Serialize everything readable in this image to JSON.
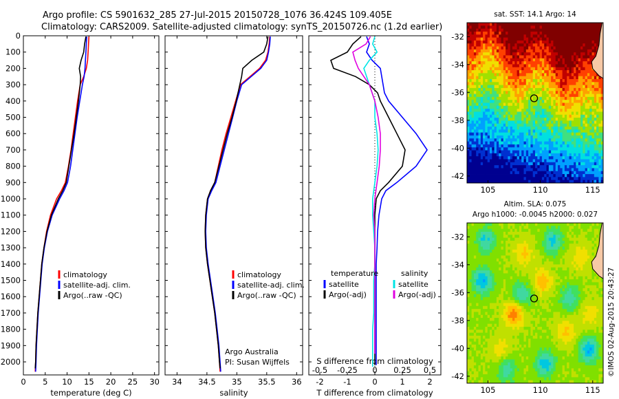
{
  "header": {
    "line1": "Argo profile: CS 5901632_285 27-Jul-2015 20150728_1076 36.424S 109.405E",
    "line2": "Climatology: CARS2009. Satellite-adjusted climatology: synTS_20150726.nc (1.2d earlier)"
  },
  "credits": {
    "text1": "Argo Australia",
    "text2": "PI: Susan Wijffels",
    "imos": "©IMOS 02-Aug-2015 20:43:27"
  },
  "colors": {
    "climatology": "#ff0000",
    "satellite": "#0000ff",
    "argo": "#000000",
    "salinity_satellite": "#00e5e5",
    "salinity_argo": "#e000e0",
    "land": "#f7c9a6"
  },
  "chart_data": [
    {
      "id": "temperature",
      "type": "line",
      "xlabel": "temperature (deg C)",
      "xlim": [
        0,
        31
      ],
      "xticks": [
        0,
        5,
        10,
        15,
        20,
        25,
        30
      ],
      "ylim": [
        0,
        2080
      ],
      "yticks": [
        0,
        100,
        200,
        300,
        400,
        500,
        600,
        700,
        800,
        900,
        1000,
        1100,
        1200,
        1300,
        1400,
        1500,
        1600,
        1700,
        1800,
        1900,
        2000
      ],
      "legend": [
        "climatology",
        "satellite-adj. clim.",
        "Argo(..raw -QC)"
      ],
      "series": [
        {
          "name": "climatology",
          "x": [
            15.0,
            14.9,
            14.8,
            14.7,
            14.4,
            13.8,
            13.0,
            12.4,
            11.9,
            11.4,
            10.9,
            10.3,
            9.6,
            8.7,
            7.6,
            6.2,
            5.3,
            4.7,
            4.2,
            3.9,
            3.6,
            3.3,
            3.1,
            2.9,
            2.8,
            2.7
          ],
          "y": [
            5,
            50,
            100,
            150,
            200,
            250,
            300,
            400,
            500,
            600,
            700,
            800,
            900,
            950,
            1000,
            1100,
            1200,
            1300,
            1400,
            1500,
            1600,
            1700,
            1800,
            1900,
            2000,
            2060
          ]
        },
        {
          "name": "satellite-adj. clim.",
          "x": [
            14.5,
            14.4,
            14.3,
            14.2,
            14.1,
            13.9,
            13.5,
            12.9,
            12.3,
            11.8,
            11.3,
            10.8,
            10.1,
            9.3,
            8.3,
            6.6,
            5.5,
            4.8,
            4.3,
            4.0,
            3.7,
            3.4,
            3.2,
            3.0,
            2.9,
            2.8
          ],
          "y": [
            5,
            50,
            100,
            150,
            200,
            250,
            300,
            400,
            500,
            600,
            700,
            800,
            900,
            950,
            1000,
            1100,
            1200,
            1300,
            1400,
            1500,
            1600,
            1700,
            1800,
            1900,
            2000,
            2060
          ]
        },
        {
          "name": "Argo(..raw -QC)",
          "x": [
            14.3,
            14.0,
            13.8,
            13.2,
            12.8,
            13.1,
            13.0,
            12.6,
            12.1,
            11.6,
            11.0,
            10.4,
            9.8,
            9.0,
            8.0,
            6.4,
            5.4,
            4.7,
            4.2,
            3.9,
            3.6,
            3.3,
            3.1,
            2.9,
            2.8,
            2.7
          ],
          "y": [
            5,
            50,
            100,
            150,
            200,
            250,
            300,
            400,
            500,
            600,
            700,
            800,
            900,
            950,
            1000,
            1100,
            1200,
            1300,
            1400,
            1500,
            1600,
            1700,
            1800,
            1900,
            2000,
            2040
          ]
        }
      ]
    },
    {
      "id": "salinity",
      "type": "line",
      "xlabel": "salinity",
      "xlim": [
        33.8,
        36.1
      ],
      "xticks": [
        34,
        34.5,
        35,
        35.5,
        36
      ],
      "ylim": [
        0,
        2080
      ],
      "legend": [
        "climatology",
        "satellite-adj. clim.",
        "Argo(..raw -QC)"
      ],
      "series": [
        {
          "name": "climatology",
          "x": [
            35.55,
            35.54,
            35.52,
            35.48,
            35.38,
            35.22,
            35.06,
            34.98,
            34.9,
            34.82,
            34.75,
            34.69,
            34.63,
            34.56,
            34.51,
            34.48,
            34.47,
            34.48,
            34.51,
            34.55,
            34.59,
            34.63,
            34.66,
            34.69,
            34.71,
            34.72
          ],
          "y": [
            5,
            50,
            100,
            150,
            200,
            250,
            300,
            400,
            500,
            600,
            700,
            800,
            900,
            950,
            1000,
            1100,
            1200,
            1300,
            1400,
            1500,
            1600,
            1700,
            1800,
            1900,
            2000,
            2060
          ]
        },
        {
          "name": "satellite-adj. clim.",
          "x": [
            35.56,
            35.55,
            35.53,
            35.5,
            35.4,
            35.24,
            35.08,
            35.0,
            34.93,
            34.86,
            34.79,
            34.72,
            34.65,
            34.58,
            34.52,
            34.49,
            34.48,
            34.49,
            34.52,
            34.56,
            34.6,
            34.64,
            34.67,
            34.7,
            34.72,
            34.73
          ],
          "y": [
            5,
            50,
            100,
            150,
            200,
            250,
            300,
            400,
            500,
            600,
            700,
            800,
            900,
            950,
            1000,
            1100,
            1200,
            1300,
            1400,
            1500,
            1600,
            1700,
            1800,
            1900,
            2000,
            2060
          ]
        },
        {
          "name": "Argo(..raw -QC)",
          "x": [
            35.52,
            35.5,
            35.45,
            35.25,
            35.1,
            35.08,
            35.05,
            34.99,
            34.92,
            34.84,
            34.77,
            34.7,
            34.63,
            34.56,
            34.51,
            34.48,
            34.47,
            34.48,
            34.51,
            34.55,
            34.59,
            34.63,
            34.66,
            34.69,
            34.71,
            34.72
          ],
          "y": [
            5,
            50,
            100,
            150,
            200,
            250,
            300,
            400,
            500,
            600,
            700,
            800,
            900,
            950,
            1000,
            1100,
            1200,
            1300,
            1400,
            1500,
            1600,
            1700,
            1800,
            1900,
            2000,
            2040
          ]
        }
      ]
    },
    {
      "id": "difference",
      "type": "line",
      "xlabel": "T difference from climatology",
      "xlabel_top": "S difference from climatology",
      "xlim": [
        -2.4,
        2.4
      ],
      "xticks": [
        -2,
        -1,
        0,
        1,
        2
      ],
      "xticks_top": [
        -0.5,
        -0.25,
        0,
        0.25,
        0.5
      ],
      "xtick_labels_top": [
        "-0.5",
        "-0.25",
        "0",
        "0.25",
        "0.5"
      ],
      "legend_titles": [
        "temperature",
        "salinity"
      ],
      "legend": [
        "satellite",
        "Argo(-adj)",
        "satellite",
        "Argo(-adj)"
      ],
      "series": [
        {
          "name": "T satellite",
          "x": [
            -0.3,
            -0.2,
            -0.3,
            -0.1,
            0.2,
            0.25,
            0.3,
            0.35,
            0.5,
            1.0,
            1.5,
            1.9,
            1.5,
            0.8,
            0.4,
            0.25,
            0.15,
            0.1,
            0.08,
            0.05,
            0.05,
            0.05,
            0.05,
            0.05,
            0.05,
            0.05
          ],
          "y": [
            5,
            50,
            100,
            150,
            200,
            250,
            300,
            350,
            400,
            500,
            600,
            700,
            800,
            900,
            950,
            1000,
            1100,
            1200,
            1300,
            1400,
            1500,
            1600,
            1700,
            1800,
            1900,
            2020
          ]
        },
        {
          "name": "T Argo(-adj)",
          "x": [
            -0.5,
            -0.8,
            -1.0,
            -1.6,
            -1.5,
            -0.7,
            -0.2,
            0.1,
            0.2,
            0.5,
            0.8,
            1.1,
            1.0,
            0.5,
            0.2,
            0.05,
            0.0,
            0.0,
            0.0,
            0.0,
            0.0,
            0.0,
            0.0,
            0.0,
            0.0,
            0.0
          ],
          "y": [
            5,
            50,
            100,
            150,
            200,
            250,
            300,
            350,
            400,
            500,
            600,
            700,
            800,
            900,
            950,
            1000,
            1100,
            1200,
            1300,
            1400,
            1500,
            1600,
            1700,
            1800,
            1900,
            2020
          ]
        },
        {
          "name": "S satellite",
          "x": [
            0.0,
            -0.02,
            0.02,
            -0.05,
            -0.1,
            -0.05,
            0.0,
            0.0,
            0.02,
            0.03,
            0.02,
            0.0,
            -0.02,
            -0.02,
            -0.01,
            0.0,
            0.0,
            -0.01,
            -0.01,
            -0.01,
            -0.02,
            -0.02,
            -0.02,
            -0.02,
            -0.02
          ],
          "y": [
            5,
            50,
            100,
            150,
            200,
            300,
            400,
            500,
            600,
            700,
            800,
            900,
            1000,
            1100,
            1200,
            1300,
            1400,
            1500,
            1600,
            1700,
            1800,
            1900,
            2000,
            2020,
            2030
          ]
        },
        {
          "name": "S Argo(-adj)",
          "x": [
            -0.04,
            -0.08,
            -0.2,
            -0.18,
            -0.15,
            -0.05,
            0.0,
            0.03,
            0.05,
            0.05,
            0.04,
            0.02,
            0.0,
            -0.01,
            0.0,
            0.0,
            0.0,
            0.0,
            0.0,
            0.0,
            0.0
          ],
          "y": [
            5,
            50,
            100,
            150,
            200,
            300,
            400,
            500,
            600,
            700,
            800,
            900,
            1000,
            1100,
            1200,
            1300,
            1400,
            1500,
            1600,
            1800,
            1950
          ]
        }
      ]
    },
    {
      "id": "sst_map",
      "type": "heatmap",
      "title": "sat. SST: 14.1  Argo: 14",
      "xlim": [
        103,
        116
      ],
      "ylim": [
        -42.5,
        -31
      ],
      "xticks": [
        105,
        110,
        115
      ],
      "yticks": [
        -32,
        -34,
        -36,
        -38,
        -40,
        -42
      ],
      "marker": {
        "lon": 109.405,
        "lat": -36.424
      },
      "colorscale": [
        "#000090",
        "#0030d0",
        "#00a0ff",
        "#00e0e0",
        "#40e080",
        "#a0e000",
        "#f0e000",
        "#ffa000",
        "#ff4000",
        "#c00000",
        "#800000"
      ]
    },
    {
      "id": "sla_map",
      "type": "heatmap",
      "title": "Altim. SLA: 0.075",
      "subtitle": "Argo h1000: -0.0045 h2000: 0.027",
      "xlim": [
        103,
        116
      ],
      "ylim": [
        -42.5,
        -31
      ],
      "xticks": [
        105,
        110,
        115
      ],
      "yticks": [
        -32,
        -34,
        -36,
        -38,
        -40,
        -42
      ],
      "marker": {
        "lon": 109.405,
        "lat": -36.424
      }
    }
  ]
}
